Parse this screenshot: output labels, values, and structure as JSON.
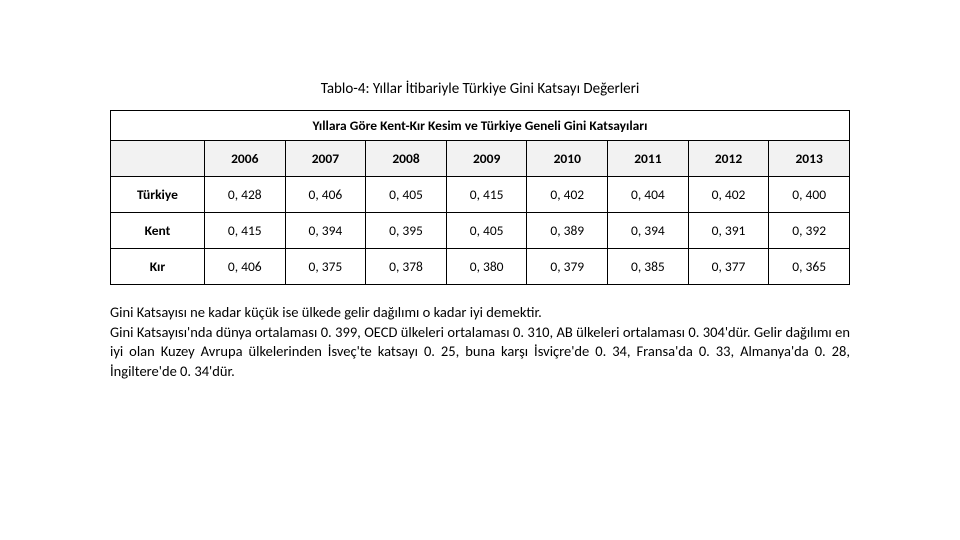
{
  "caption": "Tablo-4: Yıllar İtibariyle Türkiye Gini Katsayı Değerleri",
  "table": {
    "title": "Yıllara Göre Kent-Kır Kesim ve Türkiye Geneli Gini Katsayıları",
    "years": [
      "2006",
      "2007",
      "2008",
      "2009",
      "2010",
      "2011",
      "2012",
      "2013"
    ],
    "rows": [
      {
        "label": "Türkiye",
        "values": [
          "0, 428",
          "0, 406",
          "0, 405",
          "0, 415",
          "0, 402",
          "0, 404",
          "0, 402",
          "0, 400"
        ]
      },
      {
        "label": "Kent",
        "values": [
          "0, 415",
          "0, 394",
          "0, 395",
          "0, 405",
          "0, 389",
          "0, 394",
          "0, 391",
          "0, 392"
        ]
      },
      {
        "label": "Kır",
        "values": [
          "0, 406",
          "0, 375",
          "0, 378",
          "0, 380",
          "0, 379",
          "0, 385",
          "0, 377",
          "0, 365"
        ]
      }
    ]
  },
  "notes": {
    "p1": "Gini Katsayısı ne kadar küçük ise ülkede gelir dağılımı o kadar iyi demektir.",
    "p2": "Gini Katsayısı'nda dünya ortalaması 0. 399, OECD ülkeleri ortalaması 0. 310, AB ülkeleri ortalaması 0. 304'dür. Gelir dağılımı en iyi olan Kuzey Avrupa ülkelerinden İsveç'te katsayı 0. 25, buna karşı İsviçre'de 0. 34, Fransa'da 0. 33, Almanya'da 0. 28, İngiltere'de 0. 34'dür."
  },
  "style": {
    "font_family": "Calibri, Arial, sans-serif",
    "text_color": "#000000",
    "background": "#ffffff",
    "border_color": "#000000",
    "header_bg": "#f2f2f2",
    "caption_fontsize": 15,
    "cell_fontsize": 13.5,
    "notes_fontsize": 14.5
  }
}
